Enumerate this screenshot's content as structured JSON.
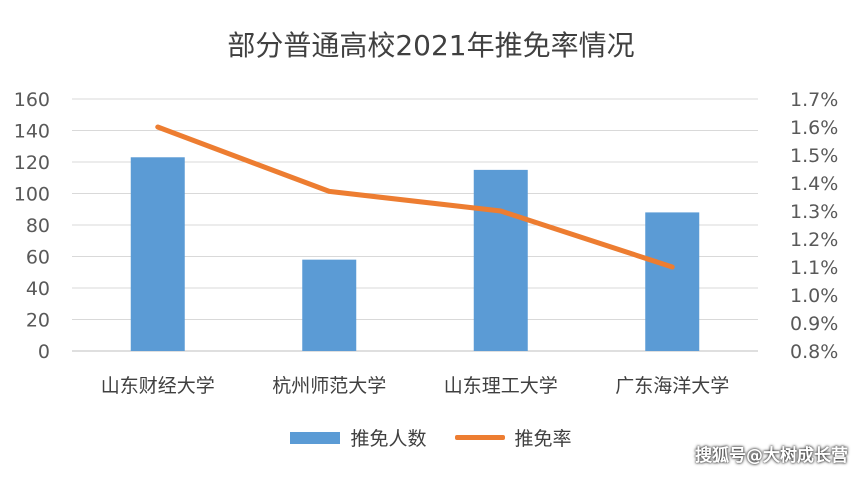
{
  "chart_data": {
    "type": "bar",
    "title": "部分普通高校2021年推免率情况",
    "categories": [
      "山东财经大学",
      "杭州师范大学",
      "山东理工大学",
      "广东海洋大学"
    ],
    "series": [
      {
        "name": "推免人数",
        "type": "bar",
        "axis": "left",
        "color": "#5B9BD5",
        "values": [
          123,
          58,
          115,
          88
        ]
      },
      {
        "name": "推免率",
        "type": "line",
        "axis": "right",
        "color": "#ED7D31",
        "values": [
          1.6,
          1.37,
          1.3,
          1.1
        ]
      }
    ],
    "y_left": {
      "min": 0,
      "max": 160,
      "step": 20,
      "ticks": [
        "0",
        "20",
        "40",
        "60",
        "80",
        "100",
        "120",
        "140",
        "160"
      ]
    },
    "y_right": {
      "min": 0.8,
      "max": 1.7,
      "step": 0.1,
      "ticks": [
        "0.8%",
        "0.9%",
        "1.0%",
        "1.1%",
        "1.2%",
        "1.3%",
        "1.4%",
        "1.5%",
        "1.6%",
        "1.7%"
      ]
    },
    "grid": true,
    "legend_position": "bottom"
  },
  "watermark": "搜狐号@大树成长营"
}
